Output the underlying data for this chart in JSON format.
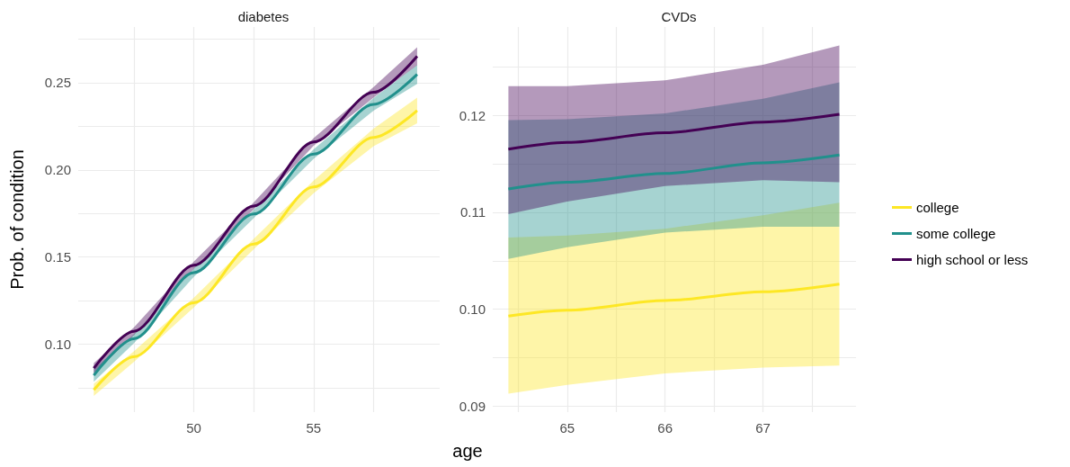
{
  "chart_data": [
    {
      "type": "line",
      "title": "diabetes",
      "xlabel": "age",
      "ylabel": "Prob. of condition",
      "legend": false,
      "grid": true,
      "marker": "none",
      "xlim": [
        45.18,
        60.26
      ],
      "xticks": [
        {
          "value": 47.5,
          "label": null
        },
        50,
        {
          "value": 52.5,
          "label": null
        },
        55,
        {
          "value": 57.5,
          "label": null
        }
      ],
      "ylim": [
        0.061,
        0.282
      ],
      "yticks": [
        {
          "value": 0.075,
          "label": null
        },
        {
          "value": 0.1,
          "label": "0.10"
        },
        {
          "value": 0.125,
          "label": null
        },
        0.15,
        {
          "value": 0.175,
          "label": null
        },
        {
          "value": 0.2,
          "label": "0.20"
        },
        {
          "value": 0.225,
          "label": null
        },
        0.25,
        {
          "value": 0.275,
          "label": null
        }
      ],
      "series": [
        {
          "color": "#fde725",
          "x": [
            45.83,
            47.5,
            50,
            52.5,
            55,
            57.5,
            59.32
          ],
          "values": [
            0.0738,
            0.0928,
            0.1238,
            0.1574,
            0.1902,
            0.2186,
            0.2341
          ],
          "lower": [
            0.0703,
            0.0898,
            0.121,
            0.1544,
            0.1866,
            0.2136,
            0.2267
          ],
          "upper": [
            0.0773,
            0.0958,
            0.1266,
            0.1604,
            0.1938,
            0.2236,
            0.2415
          ]
        },
        {
          "color": "#21908c",
          "x": [
            45.83,
            47.5,
            50,
            52.5,
            55,
            57.5,
            59.32
          ],
          "values": [
            0.0821,
            0.1031,
            0.141,
            0.1747,
            0.2091,
            0.2376,
            0.2548
          ],
          "lower": [
            0.0784,
            0.1005,
            0.1386,
            0.1723,
            0.2064,
            0.234,
            0.2494
          ],
          "upper": [
            0.0858,
            0.1057,
            0.1434,
            0.1771,
            0.2118,
            0.2412,
            0.2602
          ]
        },
        {
          "color": "#440154",
          "x": [
            45.83,
            47.5,
            50,
            52.5,
            55,
            57.5,
            59.32
          ],
          "values": [
            0.0862,
            0.1074,
            0.1453,
            0.1793,
            0.216,
            0.2445,
            0.2652
          ],
          "lower": [
            0.0832,
            0.1052,
            0.1432,
            0.1773,
            0.2138,
            0.2415,
            0.26
          ],
          "upper": [
            0.0892,
            0.1096,
            0.1474,
            0.1813,
            0.2182,
            0.2475,
            0.2704
          ]
        }
      ]
    },
    {
      "type": "line",
      "title": "CVDs",
      "legend": "right",
      "grid": true,
      "marker": "none",
      "xlim": [
        64.24,
        67.95
      ],
      "xticks": [
        {
          "value": 64.5,
          "label": null
        },
        65,
        {
          "value": 65.5,
          "label": null
        },
        66,
        {
          "value": 66.5,
          "label": null
        },
        67,
        {
          "value": 67.5,
          "label": null
        }
      ],
      "ylim": [
        0.0894,
        0.1291
      ],
      "yticks": [
        0.09,
        {
          "value": 0.095,
          "label": null
        },
        {
          "value": 0.1,
          "label": "0.10"
        },
        {
          "value": 0.105,
          "label": null
        },
        0.11,
        {
          "value": 0.115,
          "label": null
        },
        0.12,
        {
          "value": 0.125,
          "label": null
        }
      ],
      "series": [
        {
          "name": "college",
          "color": "#fde725",
          "x": [
            64.4,
            65,
            66,
            67,
            67.78
          ],
          "values": [
            0.0993,
            0.0999,
            0.1009,
            0.1018,
            0.1026
          ],
          "lower": [
            0.0913,
            0.0922,
            0.0934,
            0.094,
            0.0942
          ],
          "upper": [
            0.1074,
            0.1076,
            0.1083,
            0.1097,
            0.111
          ]
        },
        {
          "name": "some college",
          "color": "#21908c",
          "x": [
            64.4,
            65,
            66,
            67,
            67.78
          ],
          "values": [
            0.1124,
            0.1131,
            0.114,
            0.1151,
            0.1159
          ],
          "lower": [
            0.1052,
            0.1064,
            0.1079,
            0.1085,
            0.1085
          ],
          "upper": [
            0.1195,
            0.1196,
            0.1202,
            0.1217,
            0.1234
          ]
        },
        {
          "name": "high school or less",
          "color": "#440154",
          "x": [
            64.4,
            65,
            66,
            67,
            67.78
          ],
          "values": [
            0.1165,
            0.1172,
            0.1182,
            0.1193,
            0.1201
          ],
          "lower": [
            0.1098,
            0.1111,
            0.1127,
            0.1133,
            0.1131
          ],
          "upper": [
            0.123,
            0.123,
            0.1236,
            0.1252,
            0.1272
          ]
        }
      ]
    }
  ]
}
